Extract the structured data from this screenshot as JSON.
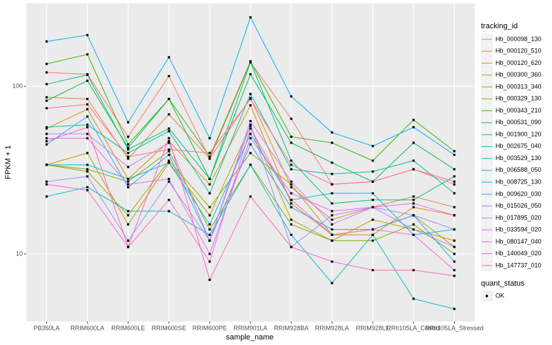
{
  "chart_data": {
    "type": "line",
    "log_scale": true,
    "grid": true,
    "x_label": "sample_name",
    "y_label": "FPKM + 1",
    "legend_title": "tracking_id",
    "legend_position": "right",
    "point_legend": {
      "title": "quant_status",
      "labels": [
        "OK"
      ],
      "color": "#000000"
    },
    "categories": [
      "PB350LA",
      "RRIM600LA",
      "RRIM600LE",
      "RRIM600SE",
      "RRIM600PE",
      "RRIM901LA",
      "RRIM928BA",
      "RRIM928LA",
      "RRIM928LE",
      "RRII105LA_Control",
      "RRII105LA_Stressed"
    ],
    "ylim": [
      3.95,
      312
    ],
    "yticks": [
      10,
      100
    ],
    "series": [
      {
        "name": "Hb_000098_130",
        "color": "#F8766D",
        "values": [
          121,
          118,
          50,
          115,
          37,
          139,
          64,
          26,
          27,
          32,
          26
        ]
      },
      {
        "name": "Hb_000120_510",
        "color": "#EA8331",
        "values": [
          86,
          84,
          37,
          68,
          37,
          85,
          25,
          16,
          19,
          22,
          19
        ]
      },
      {
        "name": "Hb_000120_620",
        "color": "#D89000",
        "values": [
          56,
          73,
          28,
          47,
          26,
          77,
          20,
          13,
          13,
          19,
          17
        ]
      },
      {
        "name": "Hb_000300_360",
        "color": "#C09B00",
        "values": [
          34,
          40,
          15,
          35,
          17,
          58,
          16,
          12,
          16,
          14,
          12
        ]
      },
      {
        "name": "Hb_000313_340",
        "color": "#A3A500",
        "values": [
          34,
          31,
          17,
          36,
          19,
          40,
          26,
          13,
          14,
          17,
          11
        ]
      },
      {
        "name": "Hb_000329_130",
        "color": "#7CAE00",
        "values": [
          34,
          32,
          27,
          41,
          14,
          34,
          15,
          12,
          12,
          15,
          10
        ]
      },
      {
        "name": "Hb_000343_210",
        "color": "#39B600",
        "values": [
          136,
          155,
          45,
          84,
          38,
          141,
          50,
          46,
          36,
          63,
          41
        ]
      },
      {
        "name": "Hb_000531_090",
        "color": "#00BB4E",
        "values": [
          82,
          108,
          43,
          84,
          28,
          118,
          46,
          35,
          27,
          46,
          32
        ]
      },
      {
        "name": "Hb_001900_120",
        "color": "#00BF7D",
        "values": [
          103,
          117,
          42,
          56,
          28,
          139,
          36,
          20,
          21,
          21,
          29
        ]
      },
      {
        "name": "Hb_002675_040",
        "color": "#00C1A3",
        "values": [
          57,
          59,
          40,
          54,
          23,
          90,
          32,
          30,
          31,
          36,
          23
        ]
      },
      {
        "name": "Hb_003529_130",
        "color": "#00BFC4",
        "values": [
          22,
          25,
          18,
          18,
          13,
          34,
          13,
          6.7,
          13,
          5.4,
          4.7
        ]
      },
      {
        "name": "Hb_006588_050",
        "color": "#00BAE0",
        "values": [
          34,
          34,
          28,
          35,
          15,
          52,
          21,
          23,
          23,
          13,
          14
        ]
      },
      {
        "name": "Hb_008725_130",
        "color": "#00B0F6",
        "values": [
          185,
          202,
          61,
          149,
          49,
          258,
          87,
          53,
          44,
          57,
          39
        ]
      },
      {
        "name": "Hb_009620_030",
        "color": "#35A2FF",
        "values": [
          45,
          66,
          25,
          39,
          12,
          45,
          19,
          14,
          14,
          17,
          9
        ]
      },
      {
        "name": "Hb_015026_050",
        "color": "#9590FF",
        "values": [
          27,
          29,
          12,
          27,
          12,
          59,
          11,
          17,
          19,
          17,
          14
        ]
      },
      {
        "name": "Hb_017895_020",
        "color": "#C77CFF",
        "values": [
          52,
          52,
          33,
          46,
          12,
          62,
          27,
          15,
          19,
          14,
          11
        ]
      },
      {
        "name": "Hb_033594_020",
        "color": "#E76BF3",
        "values": [
          49,
          49,
          26,
          28,
          10,
          49,
          23,
          18,
          19,
          20,
          17
        ]
      },
      {
        "name": "Hb_080147_040",
        "color": "#FA62DB",
        "values": [
          26,
          24,
          11,
          21,
          9,
          56,
          21,
          13,
          14,
          13,
          8
        ]
      },
      {
        "name": "Hb_140049_020",
        "color": "#FF62BC",
        "values": [
          47,
          57,
          11,
          49,
          7,
          22,
          11,
          9,
          8,
          8,
          7.4
        ]
      },
      {
        "name": "Hb_147737_010",
        "color": "#FF6C91",
        "values": [
          74,
          78,
          38,
          42,
          40,
          84,
          34,
          26,
          27,
          32,
          27
        ]
      }
    ]
  }
}
